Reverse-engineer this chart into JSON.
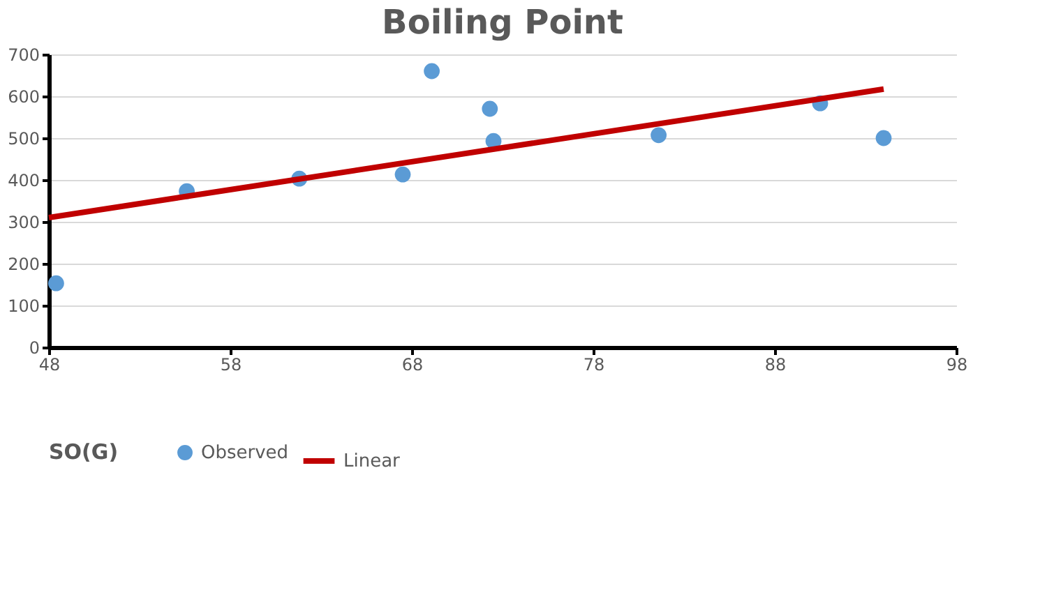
{
  "chart_data": {
    "type": "scatter",
    "title": "Boiling Point",
    "legend_title": "SO(G)",
    "xlim": [
      48,
      98
    ],
    "xticks": [
      48,
      58,
      68,
      78,
      88,
      98
    ],
    "ylim": [
      0,
      700
    ],
    "yticks": [
      0,
      100,
      200,
      300,
      400,
      500,
      600,
      700
    ],
    "grid": "y",
    "legend": "bottom",
    "series": [
      {
        "name": "Observed",
        "type": "scatter",
        "marker": "circle",
        "color": "#5b9bd5",
        "x": [
          48.4,
          55.6,
          61.8,
          67.5,
          69.1,
          72.3,
          72.5,
          81.6,
          90.5,
          94.0
        ],
        "values": [
          153,
          373,
          403,
          413,
          660,
          570,
          493,
          507,
          583,
          500
        ]
      },
      {
        "name": "Linear",
        "type": "line",
        "line_style": "solid",
        "color": "#c00000",
        "x": [
          48.0,
          94.0
        ],
        "values": [
          310,
          617
        ]
      }
    ]
  }
}
